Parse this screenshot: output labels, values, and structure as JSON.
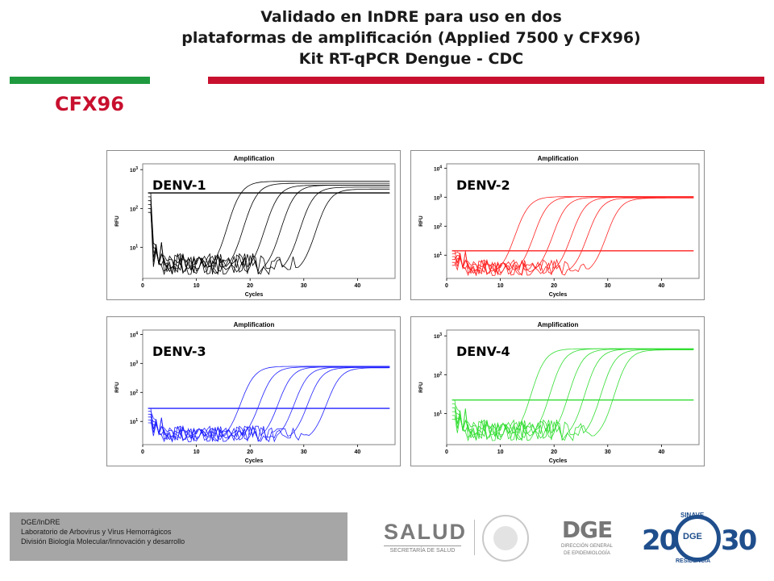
{
  "header": {
    "line1": "Validado en InDRE para uso en dos",
    "line2": "plataformas de amplificación  (Applied 7500 y CFX96)",
    "line3": "Kit RT-qPCR Dengue -  CDC",
    "section": "CFX96"
  },
  "colors": {
    "green_bar": "#1f9a3f",
    "red_bar": "#c8102e",
    "title_red": "#c8102e"
  },
  "chart_data": [
    {
      "type": "line",
      "title": "Amplification",
      "label": "DENV-1",
      "xlabel": "Cycles",
      "ylabel": "RFU",
      "color": "#000000",
      "xlim": [
        0,
        47
      ],
      "xticks": [
        "0",
        "10",
        "20",
        "30",
        "40"
      ],
      "yscale": "log",
      "ylim_log": [
        0.2,
        3.15
      ],
      "yticks": [
        {
          "base": "10",
          "exp": "1",
          "log": 1
        },
        {
          "base": "10",
          "exp": "2",
          "log": 2
        },
        {
          "base": "10",
          "exp": "3",
          "log": 3
        }
      ],
      "threshold": 2.4,
      "ct": [
        13.5,
        16.5,
        20.5,
        23.5,
        27,
        30
      ],
      "plateau": [
        2.7,
        2.65,
        2.6,
        2.6,
        2.55,
        2.5
      ]
    },
    {
      "type": "line",
      "title": "Amplification",
      "label": "DENV-2",
      "xlabel": "Cycles",
      "ylabel": "RFU",
      "color": "#ff2020",
      "xlim": [
        0,
        47
      ],
      "xticks": [
        "0",
        "10",
        "20",
        "30",
        "40"
      ],
      "yscale": "log",
      "ylim_log": [
        0.2,
        4.15
      ],
      "yticks": [
        {
          "base": "10",
          "exp": "1",
          "log": 1
        },
        {
          "base": "10",
          "exp": "2",
          "log": 2
        },
        {
          "base": "10",
          "exp": "3",
          "log": 3
        },
        {
          "base": "10",
          "exp": "4",
          "log": 4
        }
      ],
      "threshold": 1.15,
      "ct": [
        10.5,
        14,
        17.5,
        21,
        24,
        27.5
      ],
      "plateau": [
        3.02,
        3.02,
        3.0,
        3.0,
        2.98,
        2.97
      ]
    },
    {
      "type": "line",
      "title": "Amplification",
      "label": "DENV-3",
      "xlabel": "Cycles",
      "ylabel": "RFU",
      "color": "#2020ff",
      "xlim": [
        0,
        47
      ],
      "xticks": [
        "0",
        "10",
        "20",
        "30",
        "40"
      ],
      "yscale": "log",
      "ylim_log": [
        0.2,
        4.15
      ],
      "yticks": [
        {
          "base": "10",
          "exp": "1",
          "log": 1
        },
        {
          "base": "10",
          "exp": "2",
          "log": 2
        },
        {
          "base": "10",
          "exp": "3",
          "log": 3
        },
        {
          "base": "10",
          "exp": "4",
          "log": 4
        }
      ],
      "threshold": 1.45,
      "ct": [
        16,
        19.5,
        23,
        26,
        28.5,
        32
      ],
      "plateau": [
        2.9,
        2.88,
        2.88,
        2.87,
        2.86,
        2.85
      ]
    },
    {
      "type": "line",
      "title": "Amplification",
      "label": "DENV-4",
      "xlabel": "Cycles",
      "ylabel": "RFU",
      "color": "#33dd33",
      "xlim": [
        0,
        47
      ],
      "xticks": [
        "0",
        "10",
        "20",
        "30",
        "40"
      ],
      "yscale": "log",
      "ylim_log": [
        0.2,
        3.15
      ],
      "yticks": [
        {
          "base": "10",
          "exp": "1",
          "log": 1
        },
        {
          "base": "10",
          "exp": "2",
          "log": 2
        },
        {
          "base": "10",
          "exp": "3",
          "log": 3
        }
      ],
      "threshold": 1.35,
      "ct": [
        13.5,
        17,
        20.5,
        23.5,
        26.5,
        29
      ],
      "plateau": [
        2.67,
        2.67,
        2.66,
        2.66,
        2.65,
        2.64
      ]
    }
  ],
  "footer": {
    "line1": "DGE/InDRE",
    "line2": "Laboratorio de Arbovirus y Virus Hemorrágicos",
    "line3": "División Biología Molecular/Innovación y desarrollo"
  },
  "logos": {
    "salud": "SALUD",
    "salud_sub": "SECRETARÍA DE SALUD",
    "dge": "DGE",
    "dge_sub1": "DIRECCIÓN GENERAL",
    "dge_sub2": "DE EPIDEMIOLOGÍA",
    "sinave_year": "20",
    "sinave_year2": "30",
    "sinave_center": "DGE",
    "sinave_top": "SINAVE",
    "sinave_bottom": "RESIDENCIA"
  }
}
